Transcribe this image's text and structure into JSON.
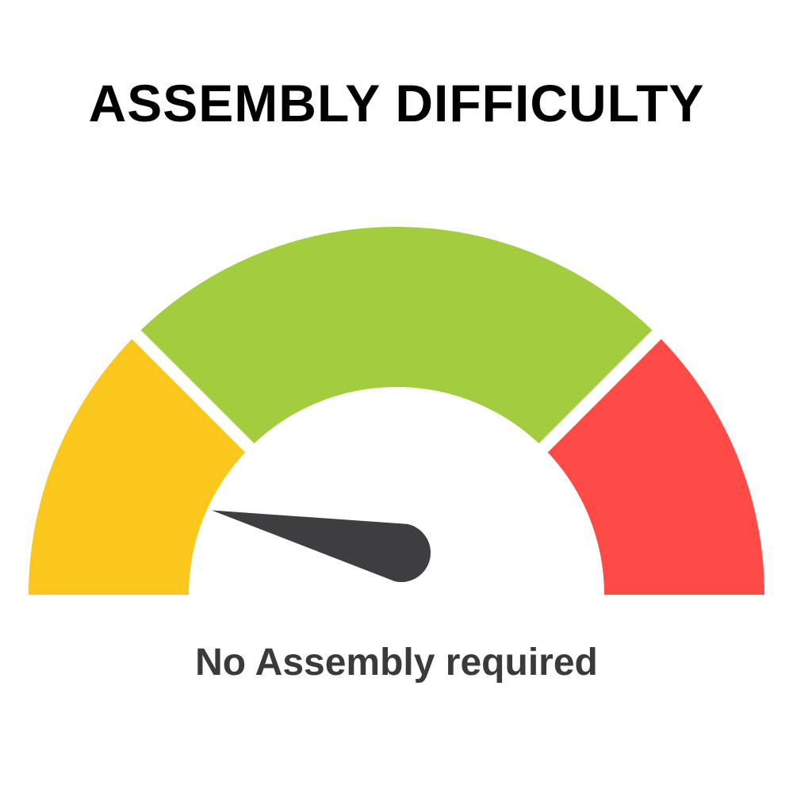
{
  "title": "ASSEMBLY DIFFICULTY",
  "caption": "No Assembly required",
  "gauge": {
    "value_fraction": 0.07,
    "segments": [
      {
        "color": "#FCC71C"
      },
      {
        "color": "#A3CC3E"
      },
      {
        "color": "#FF4B45"
      }
    ],
    "needle_color": "#3E3E40",
    "needle-icon": "gauge-needle"
  }
}
